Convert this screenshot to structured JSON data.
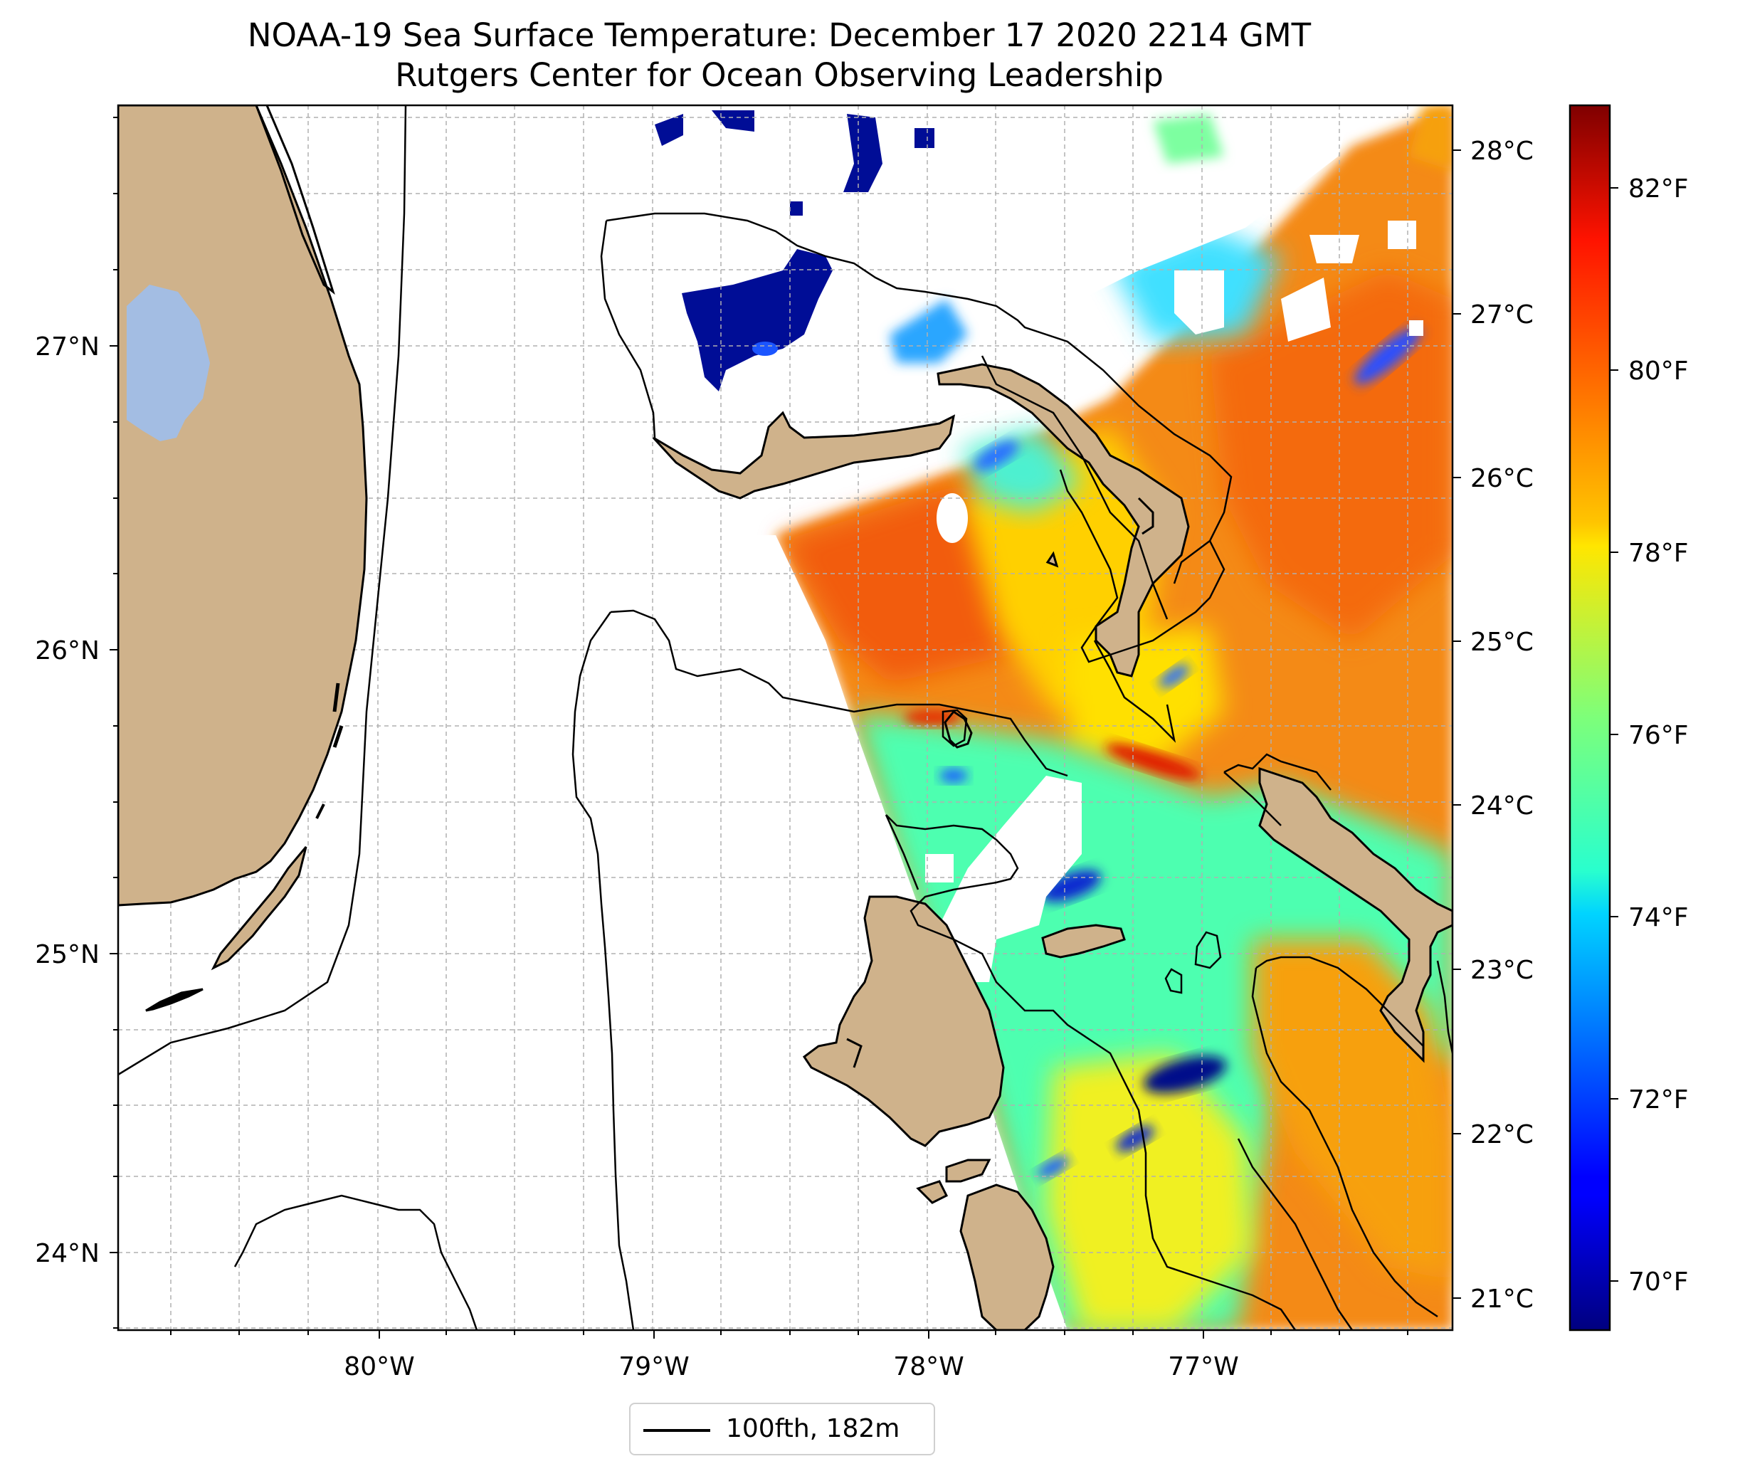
{
  "title": {
    "line1": "NOAA-19 Sea Surface Temperature: December 17 2020 2214 GMT",
    "line2": "Rutgers Center for Ocean Observing Leadership"
  },
  "map": {
    "lon_ticks": [
      "80°W",
      "79°W",
      "78°W",
      "77°W"
    ],
    "lat_ticks": [
      "24°N",
      "25°N",
      "26°N",
      "27°N"
    ],
    "celsius_ticks": [
      "21°C",
      "22°C",
      "23°C",
      "24°C",
      "25°C",
      "26°C",
      "27°C",
      "28°C"
    ],
    "fahrenheit_ticks": [
      "70°F",
      "72°F",
      "74°F",
      "76°F",
      "78°F",
      "80°F",
      "82°F"
    ],
    "colormap": "jet",
    "colors": {
      "land": "#cfb28b",
      "lake": "#a3bde3",
      "grid": "#b0b0b0",
      "warm": "#f47a0d",
      "cold": "#000f8a"
    },
    "grid": true
  },
  "legend": {
    "label": "100fth, 182m",
    "placement": "bottom-center"
  }
}
